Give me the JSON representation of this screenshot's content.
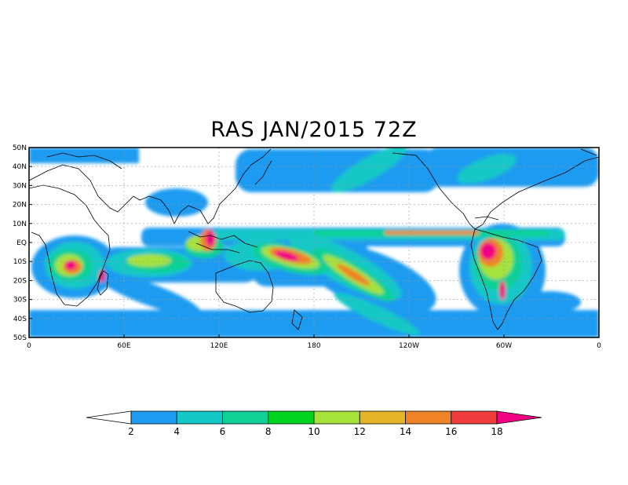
{
  "title": "RAS JAN/2015 72Z",
  "lat_ticks": [
    "50N",
    "40N",
    "30N",
    "20N",
    "10N",
    "EQ",
    "10S",
    "20S",
    "30S",
    "40S",
    "50S"
  ],
  "lon_ticks": [
    "0",
    "60E",
    "120E",
    "180",
    "120W",
    "60W",
    "0"
  ],
  "colorbar": {
    "levels": [
      "2",
      "4",
      "6",
      "8",
      "10",
      "12",
      "14",
      "16",
      "18"
    ],
    "colors": [
      "#ffffff",
      "#1e9bf0",
      "#16c7c7",
      "#10d095",
      "#00d41e",
      "#a6e23c",
      "#e6b428",
      "#f08228",
      "#f03c3c",
      "#f00082"
    ]
  }
}
